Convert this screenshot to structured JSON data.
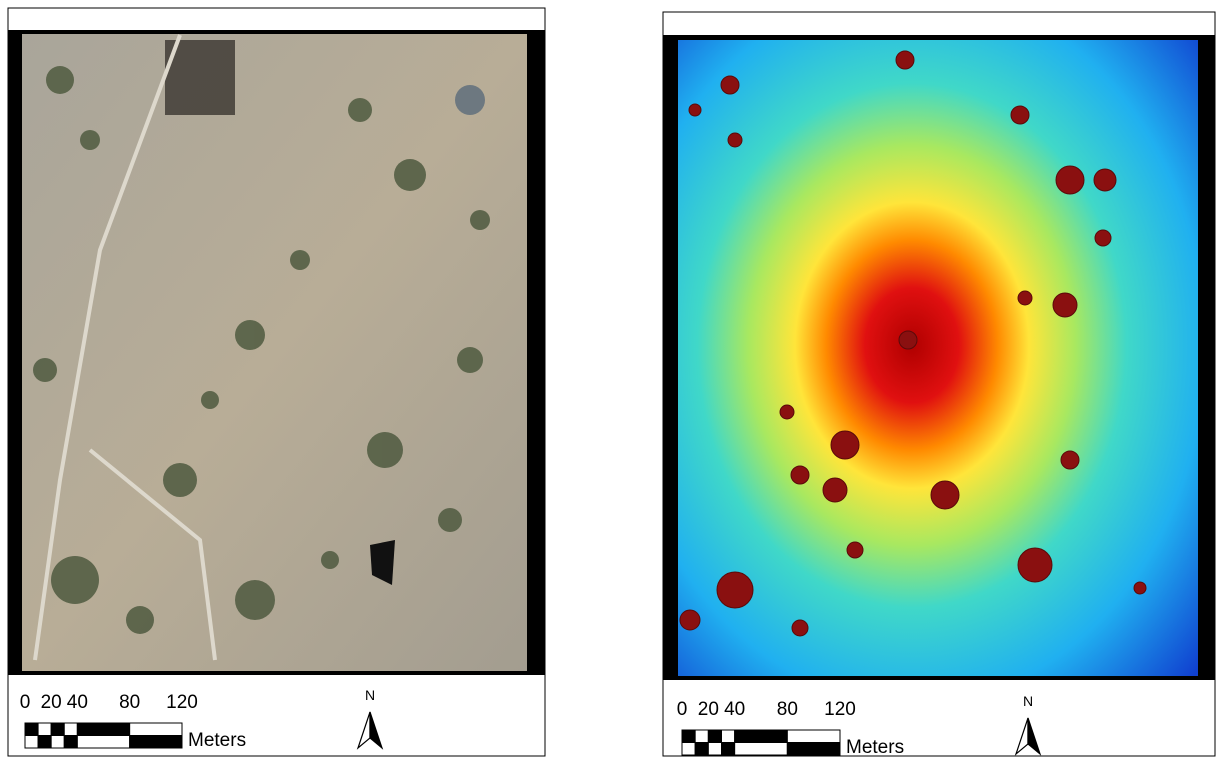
{
  "panels": [
    {
      "scale_labels": [
        0,
        20,
        40,
        80,
        120
      ],
      "unit": "Meters",
      "north": "N"
    },
    {
      "scale_labels": [
        0,
        20,
        40,
        80,
        120
      ],
      "unit": "Meters",
      "north": "N"
    }
  ]
}
